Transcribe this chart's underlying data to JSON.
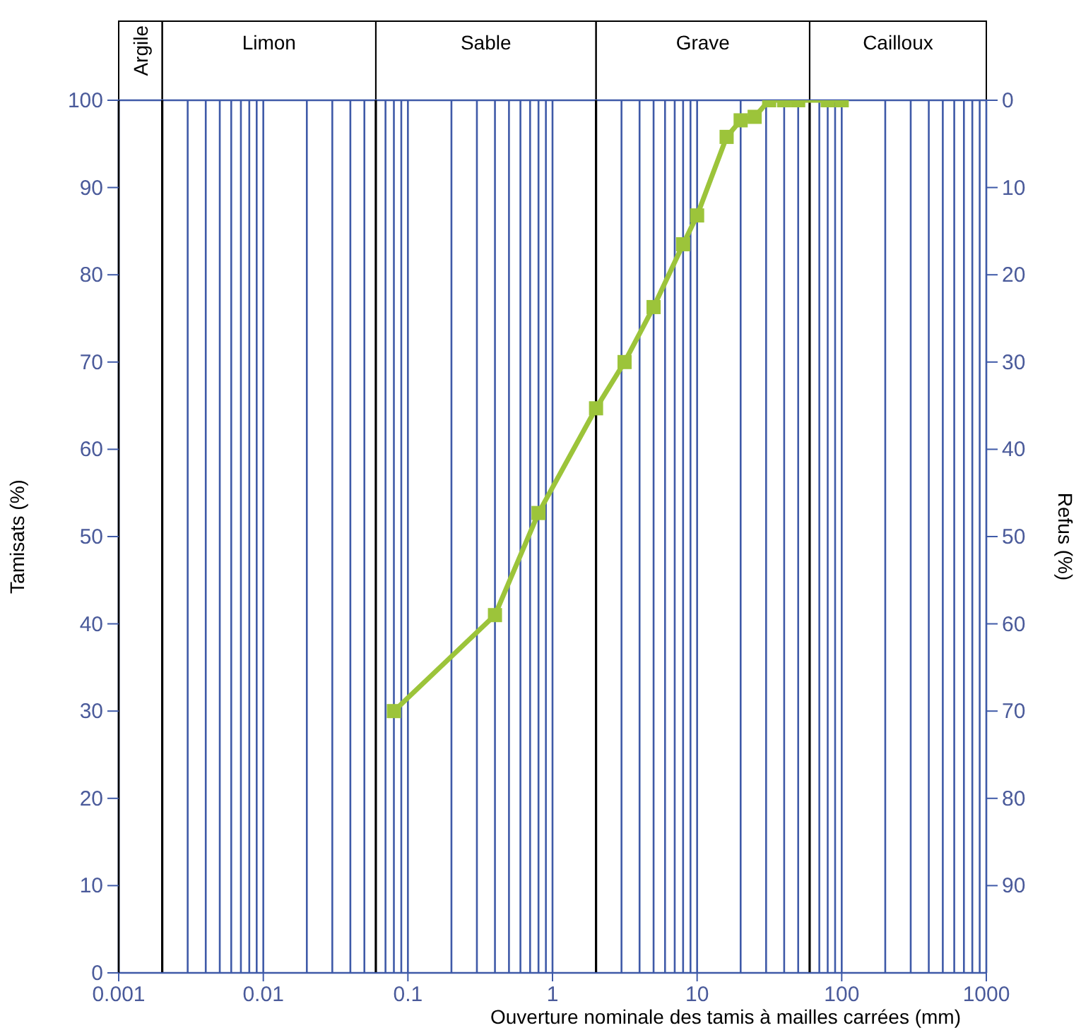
{
  "chart_data": {
    "type": "line",
    "xlabel": "Ouverture nominale des tamis à mailles carrées (mm)",
    "ylabel": "Tamisats (%)",
    "y2label": "Refus (%)",
    "log": "x",
    "xlim": [
      0.001,
      1000
    ],
    "xticks": [
      {
        "value": 0.001,
        "label": "0.001"
      },
      {
        "value": 0.003,
        "label": null
      },
      {
        "value": 0.004,
        "label": null
      },
      {
        "value": 0.005,
        "label": null
      },
      {
        "value": 0.006,
        "label": null
      },
      {
        "value": 0.007,
        "label": null
      },
      {
        "value": 0.008,
        "label": null
      },
      {
        "value": 0.009,
        "label": null
      },
      {
        "value": 0.01,
        "label": "0.01"
      },
      {
        "value": 0.02,
        "label": null
      },
      {
        "value": 0.03,
        "label": null
      },
      {
        "value": 0.04,
        "label": null
      },
      {
        "value": 0.05,
        "label": null
      },
      {
        "value": 0.07,
        "label": null
      },
      {
        "value": 0.08,
        "label": null
      },
      {
        "value": 0.09,
        "label": null
      },
      {
        "value": 0.1,
        "label": "0.1"
      },
      {
        "value": 0.2,
        "label": null
      },
      {
        "value": 0.3,
        "label": null
      },
      {
        "value": 0.4,
        "label": null
      },
      {
        "value": 0.5,
        "label": null
      },
      {
        "value": 0.6,
        "label": null
      },
      {
        "value": 0.7,
        "label": null
      },
      {
        "value": 0.8,
        "label": null
      },
      {
        "value": 0.9,
        "label": null
      },
      {
        "value": 1,
        "label": "1"
      },
      {
        "value": 3,
        "label": null
      },
      {
        "value": 4,
        "label": null
      },
      {
        "value": 5,
        "label": null
      },
      {
        "value": 6,
        "label": null
      },
      {
        "value": 7,
        "label": null
      },
      {
        "value": 8,
        "label": null
      },
      {
        "value": 9,
        "label": null
      },
      {
        "value": 10,
        "label": "10"
      },
      {
        "value": 20,
        "label": null
      },
      {
        "value": 30,
        "label": null
      },
      {
        "value": 40,
        "label": null
      },
      {
        "value": 50,
        "label": null
      },
      {
        "value": 70,
        "label": null
      },
      {
        "value": 80,
        "label": null
      },
      {
        "value": 90,
        "label": null
      },
      {
        "value": 100,
        "label": "100"
      },
      {
        "value": 200,
        "label": null
      },
      {
        "value": 300,
        "label": null
      },
      {
        "value": 400,
        "label": null
      },
      {
        "value": 500,
        "label": null
      },
      {
        "value": 600,
        "label": null
      },
      {
        "value": 700,
        "label": null
      },
      {
        "value": 800,
        "label": null
      },
      {
        "value": 900,
        "label": null
      },
      {
        "value": 1000,
        "label": "1000"
      }
    ],
    "ylim": [
      0,
      100
    ],
    "yticks": [
      0,
      10,
      20,
      30,
      40,
      50,
      60,
      70,
      80,
      90,
      100
    ],
    "y2lim": [
      100,
      0
    ],
    "y2ticks": [
      0,
      10,
      20,
      30,
      40,
      50,
      60,
      70,
      80,
      90
    ],
    "grid": true,
    "marker": "square",
    "line_style": "solid",
    "ref_lines": [
      {
        "axis": "x",
        "value": 0.002,
        "color": "#000000"
      },
      {
        "axis": "x",
        "value": 0.06,
        "color": "#000000"
      },
      {
        "axis": "x",
        "value": 2,
        "color": "#000000"
      },
      {
        "axis": "x",
        "value": 60,
        "color": "#000000"
      }
    ],
    "annotations": [
      "Argile",
      "Limon",
      "Sable",
      "Grave",
      "Cailloux"
    ],
    "x": [
      0.08,
      0.4,
      0.8,
      2,
      3.15,
      5,
      8,
      10,
      16,
      20,
      25,
      31.5,
      40,
      50,
      80,
      100
    ],
    "series": [
      {
        "color": "#9cc43a",
        "values": [
          30,
          41,
          52.7,
          64.7,
          70,
          76.3,
          83.5,
          86.8,
          95.8,
          97.7,
          98.1,
          100,
          100,
          100,
          100,
          100
        ]
      }
    ]
  }
}
